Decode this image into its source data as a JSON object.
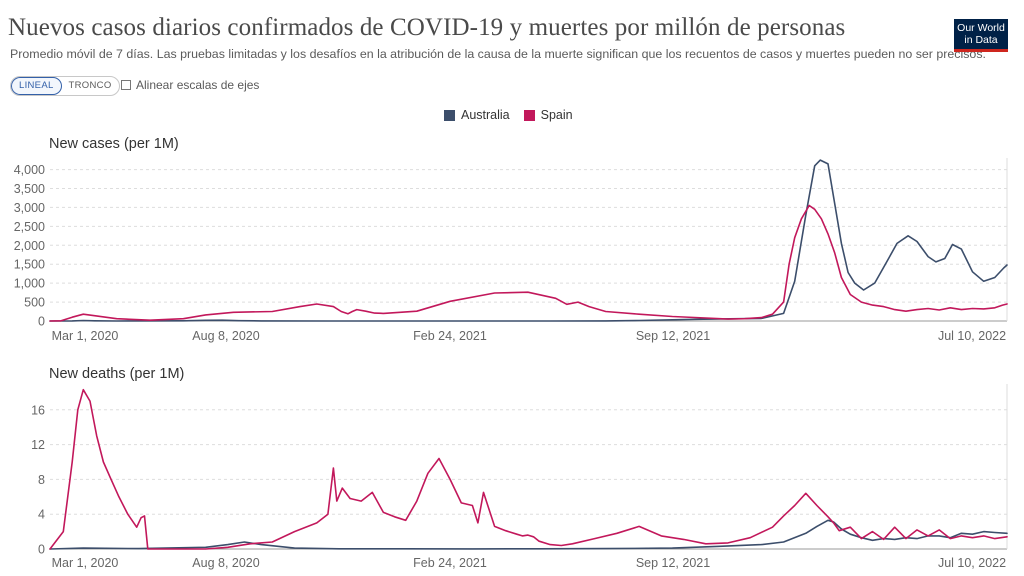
{
  "header": {
    "title": "Nuevos casos diarios confirmados de COVID-19 y muertes por millón de personas",
    "subtitle": "Promedio móvil de 7 días. Las pruebas limitadas y los desafíos en la atribución de la causa de la muerte significan que los recuentos de casos y muertes pueden no ser precisos.",
    "logo_line1": "Our World",
    "logo_line2": "in Data"
  },
  "controls": {
    "linear_label": "LINEAL",
    "log_label": "TRONCO",
    "align_label": "Alinear escalas de ejes"
  },
  "legend": [
    {
      "name": "Australia",
      "color": "#3c4e6b"
    },
    {
      "name": "Spain",
      "color": "#c2185b"
    }
  ],
  "chart_data": [
    {
      "type": "line",
      "title": "New cases (per 1M)",
      "xlabel": "",
      "ylabel": "",
      "x_ticks": [
        "Mar 1, 2020",
        "Aug 8, 2020",
        "Feb 24, 2021",
        "Sep 12, 2021",
        "Jul 10, 2022"
      ],
      "x_range_days": [
        0,
        861
      ],
      "ylim": [
        0,
        4200
      ],
      "y_ticks": [
        "0",
        "500",
        "1,000",
        "1,500",
        "2,000",
        "2,500",
        "3,000",
        "3,500",
        "4,000"
      ],
      "y_tick_values": [
        0,
        500,
        1000,
        1500,
        2000,
        2500,
        3000,
        3500,
        4000
      ],
      "grid": "horizontal",
      "series": [
        {
          "name": "Australia",
          "color": "#3c4e6b",
          "x": [
            0,
            20,
            30,
            40,
            60,
            120,
            140,
            155,
            170,
            190,
            250,
            300,
            350,
            400,
            450,
            500,
            530,
            580,
            620,
            640,
            660,
            670,
            680,
            688,
            693,
            700,
            706,
            712,
            718,
            724,
            732,
            742,
            752,
            762,
            772,
            780,
            790,
            797,
            805,
            812,
            820,
            830,
            840,
            850,
            858,
            861
          ],
          "values": [
            0,
            2,
            12,
            6,
            1,
            5,
            18,
            20,
            8,
            2,
            1,
            1,
            1,
            1,
            1,
            2,
            12,
            45,
            60,
            70,
            200,
            1050,
            2800,
            4100,
            4250,
            4150,
            3100,
            2050,
            1280,
            1000,
            820,
            1000,
            1520,
            2050,
            2250,
            2100,
            1700,
            1560,
            1650,
            2020,
            1900,
            1300,
            1050,
            1150,
            1400,
            1480
          ]
        },
        {
          "name": "Spain",
          "color": "#c2185b",
          "x": [
            0,
            10,
            20,
            30,
            40,
            60,
            90,
            120,
            140,
            165,
            200,
            225,
            240,
            255,
            262,
            268,
            272,
            276,
            284,
            292,
            300,
            330,
            360,
            400,
            430,
            455,
            465,
            475,
            485,
            500,
            530,
            560,
            590,
            610,
            625,
            640,
            650,
            660,
            665,
            670,
            676,
            683,
            688,
            694,
            700,
            706,
            712,
            720,
            730,
            740,
            750,
            760,
            770,
            780,
            790,
            800,
            810,
            820,
            830,
            840,
            850,
            857,
            861
          ],
          "values": [
            0,
            5,
            100,
            180,
            140,
            60,
            20,
            60,
            160,
            230,
            250,
            380,
            450,
            380,
            250,
            190,
            250,
            300,
            260,
            210,
            200,
            260,
            520,
            740,
            760,
            600,
            440,
            500,
            380,
            250,
            180,
            120,
            80,
            50,
            60,
            90,
            180,
            500,
            1500,
            2200,
            2700,
            3050,
            2950,
            2700,
            2300,
            1800,
            1150,
            700,
            500,
            420,
            380,
            300,
            260,
            300,
            330,
            290,
            350,
            300,
            330,
            320,
            350,
            420,
            450
          ]
        }
      ]
    },
    {
      "type": "line",
      "title": "New deaths (per 1M)",
      "xlabel": "",
      "ylabel": "",
      "x_ticks": [
        "Mar 1, 2020",
        "Aug 8, 2020",
        "Feb 24, 2021",
        "Sep 12, 2021",
        "Jul 10, 2022"
      ],
      "x_range_days": [
        0,
        861
      ],
      "ylim": [
        0,
        18.5
      ],
      "y_ticks": [
        "0",
        "4",
        "8",
        "12",
        "16"
      ],
      "y_tick_values": [
        0,
        4,
        8,
        12,
        16
      ],
      "grid": "horizontal",
      "series": [
        {
          "name": "Australia",
          "color": "#3c4e6b",
          "x": [
            0,
            30,
            80,
            140,
            160,
            175,
            190,
            220,
            260,
            320,
            380,
            440,
            500,
            560,
            600,
            640,
            660,
            680,
            690,
            700,
            705,
            712,
            720,
            730,
            740,
            750,
            760,
            770,
            780,
            790,
            800,
            810,
            820,
            830,
            840,
            850,
            861
          ],
          "values": [
            0,
            0.1,
            0.05,
            0.2,
            0.5,
            0.8,
            0.5,
            0.1,
            0.02,
            0.02,
            0.01,
            0.02,
            0.05,
            0.1,
            0.3,
            0.5,
            0.8,
            1.8,
            2.6,
            3.3,
            3.1,
            2.3,
            1.7,
            1.3,
            1.0,
            1.2,
            1.1,
            1.3,
            1.2,
            1.5,
            1.5,
            1.3,
            1.8,
            1.7,
            2.0,
            1.9,
            1.8
          ]
        },
        {
          "name": "Spain",
          "color": "#c2185b",
          "x": [
            0,
            12,
            20,
            25,
            30,
            36,
            42,
            48,
            55,
            62,
            70,
            78,
            82,
            85,
            88,
            95,
            110,
            140,
            160,
            180,
            200,
            220,
            240,
            250,
            255,
            258,
            263,
            270,
            280,
            290,
            300,
            310,
            320,
            330,
            340,
            350,
            360,
            370,
            380,
            385,
            390,
            400,
            410,
            420,
            425,
            430,
            435,
            440,
            450,
            460,
            470,
            490,
            510,
            530,
            550,
            570,
            590,
            610,
            630,
            650,
            660,
            670,
            680,
            690,
            700,
            705,
            710,
            720,
            730,
            740,
            750,
            760,
            770,
            780,
            790,
            800,
            810,
            820,
            830,
            840,
            850,
            861
          ],
          "values": [
            0,
            2,
            10,
            16,
            18.3,
            17,
            13,
            10,
            8,
            6,
            4,
            2.5,
            3.6,
            3.8,
            0,
            0,
            0,
            0,
            0.2,
            0.6,
            0.8,
            2.0,
            3.0,
            4.0,
            9.3,
            5.5,
            7.0,
            5.8,
            5.5,
            6.5,
            4.2,
            3.7,
            3.3,
            5.5,
            8.7,
            10.4,
            8.0,
            5.3,
            5.0,
            3.0,
            6.5,
            2.6,
            2.1,
            1.7,
            1.5,
            1.6,
            1.4,
            0.9,
            0.5,
            0.4,
            0.6,
            1.2,
            1.8,
            2.6,
            1.5,
            1.1,
            0.6,
            0.7,
            1.3,
            2.5,
            3.8,
            5.0,
            6.4,
            5.0,
            3.7,
            3.0,
            2.1,
            2.5,
            1.2,
            2.0,
            1.1,
            2.5,
            1.2,
            2.2,
            1.5,
            2.2,
            1.2,
            1.5,
            1.3,
            1.5,
            1.2,
            1.4
          ]
        }
      ]
    }
  ]
}
